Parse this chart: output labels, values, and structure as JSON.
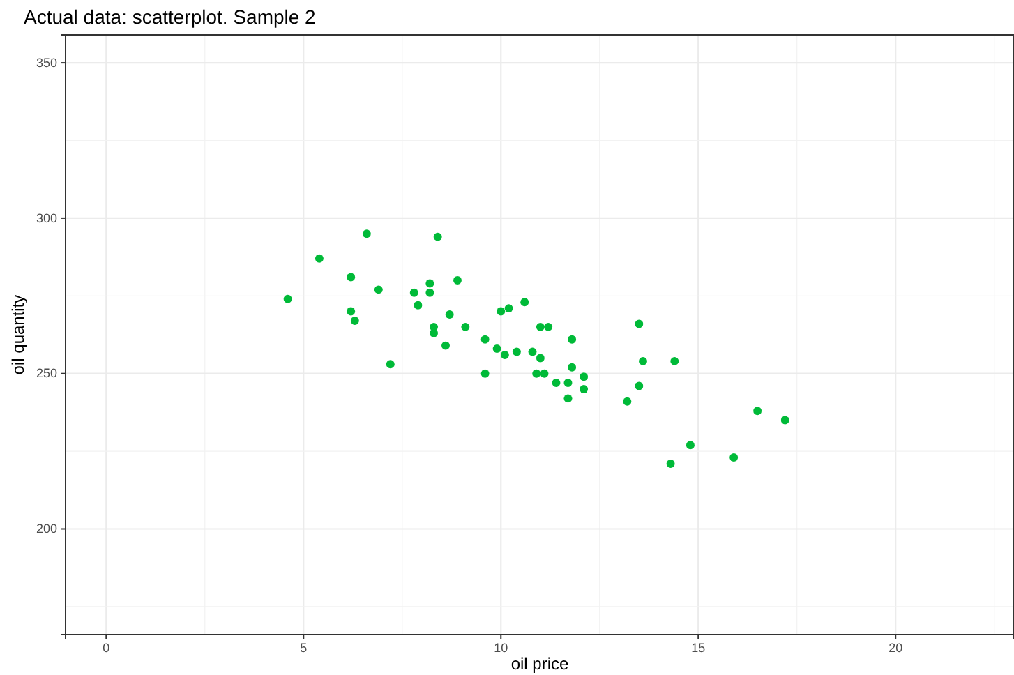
{
  "chart_data": {
    "type": "scatter",
    "title": "Actual data: scatterplot. Sample 2",
    "xlabel": "oil price",
    "ylabel": "oil quantity",
    "xlim": [
      -1.03,
      23
    ],
    "ylim": [
      166,
      359
    ],
    "xticks": [
      0,
      5,
      10,
      15,
      20
    ],
    "yticks": [
      200,
      250,
      300,
      350
    ],
    "grid": true,
    "marker": "circle",
    "series": [
      {
        "color": "#00ba38",
        "x": [
          4.6,
          5.4,
          6.6,
          6.2,
          6.9,
          6.2,
          6.3,
          7.2,
          8.4,
          7.8,
          8.2,
          8.2,
          8.9,
          7.9,
          8.3,
          8.3,
          8.7,
          9.1,
          8.6,
          9.6,
          9.6,
          9.9,
          10.1,
          10.0,
          10.2,
          10.6,
          10.4,
          10.8,
          11.0,
          10.9,
          11.2,
          11.8,
          11.0,
          11.8,
          11.1,
          12.1,
          11.4,
          11.7,
          12.1,
          11.7,
          13.5,
          13.6,
          14.4,
          13.5,
          13.2,
          16.5,
          17.2,
          14.8,
          15.9,
          14.3
        ],
        "values": [
          274,
          287,
          295,
          281,
          277,
          270,
          267,
          253,
          294,
          276,
          279,
          276,
          280,
          272,
          265,
          263,
          269,
          265,
          259,
          261,
          250,
          258,
          256,
          270,
          271,
          273,
          257,
          257,
          265,
          250,
          265,
          261,
          255,
          252,
          250,
          249,
          247,
          247,
          245,
          242,
          266,
          254,
          254,
          246,
          241,
          238,
          235,
          227,
          223,
          221
        ]
      }
    ]
  }
}
